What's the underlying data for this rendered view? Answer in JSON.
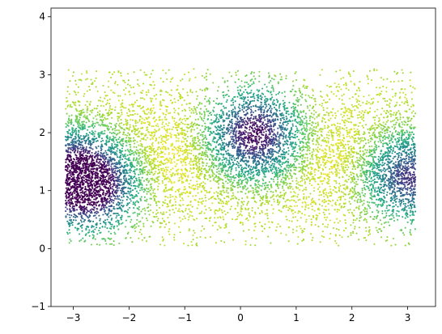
{
  "chart_data": {
    "type": "scatter",
    "title": "",
    "xlabel": "",
    "ylabel": "",
    "xlim": [
      -3.4,
      3.5
    ],
    "ylim": [
      -1,
      4.15
    ],
    "grid": false,
    "x_ticks": [
      -3,
      -2,
      -1,
      0,
      1,
      2,
      3
    ],
    "y_ticks": [
      -1,
      0,
      1,
      2,
      3,
      4
    ],
    "x_tick_labels": [
      "−3",
      "−2",
      "−1",
      "0",
      "1",
      "2",
      "3"
    ],
    "y_tick_labels": [
      "−1",
      "0",
      "1",
      "2",
      "3",
      "4"
    ],
    "colormap": "viridis",
    "point_cloud": {
      "x_range": [
        -3.14,
        3.14
      ],
      "y_range": [
        0.05,
        3.1
      ],
      "point_count": 9000
    },
    "dense_clusters": [
      {
        "x": 0.25,
        "y": 1.95,
        "strength": 1.0
      },
      {
        "x": -2.65,
        "y": 1.1,
        "strength": 0.9
      },
      {
        "x": 3.05,
        "y": 1.25,
        "strength": 0.85
      },
      {
        "x": -3.1,
        "y": 1.3,
        "strength": 0.75
      }
    ],
    "colors": {
      "low": "#440154",
      "mid": "#21918c",
      "high": "#fde725"
    }
  }
}
